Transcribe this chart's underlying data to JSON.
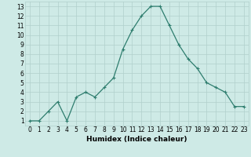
{
  "x": [
    0,
    1,
    2,
    3,
    4,
    5,
    6,
    7,
    8,
    9,
    10,
    11,
    12,
    13,
    14,
    15,
    16,
    17,
    18,
    19,
    20,
    21,
    22,
    23
  ],
  "y": [
    1,
    1,
    2,
    3,
    1,
    3.5,
    4,
    3.5,
    4.5,
    5.5,
    8.5,
    10.5,
    12,
    13,
    13,
    11,
    9,
    7.5,
    6.5,
    5,
    4.5,
    4,
    2.5,
    2.5
  ],
  "line_color": "#2e7d6e",
  "marker": "+",
  "bg_color": "#ceeae6",
  "grid_color": "#b0d0cc",
  "xlabel": "Humidex (Indice chaleur)",
  "xlim": [
    -0.5,
    23.5
  ],
  "ylim": [
    0.5,
    13.5
  ],
  "yticks": [
    1,
    2,
    3,
    4,
    5,
    6,
    7,
    8,
    9,
    10,
    11,
    12,
    13
  ],
  "xticks": [
    0,
    1,
    2,
    3,
    4,
    5,
    6,
    7,
    8,
    9,
    10,
    11,
    12,
    13,
    14,
    15,
    16,
    17,
    18,
    19,
    20,
    21,
    22,
    23
  ],
  "tick_label_fontsize": 5.5,
  "xlabel_fontsize": 6.5,
  "markersize": 3.5,
  "markeredgewidth": 0.8,
  "linewidth": 0.9
}
